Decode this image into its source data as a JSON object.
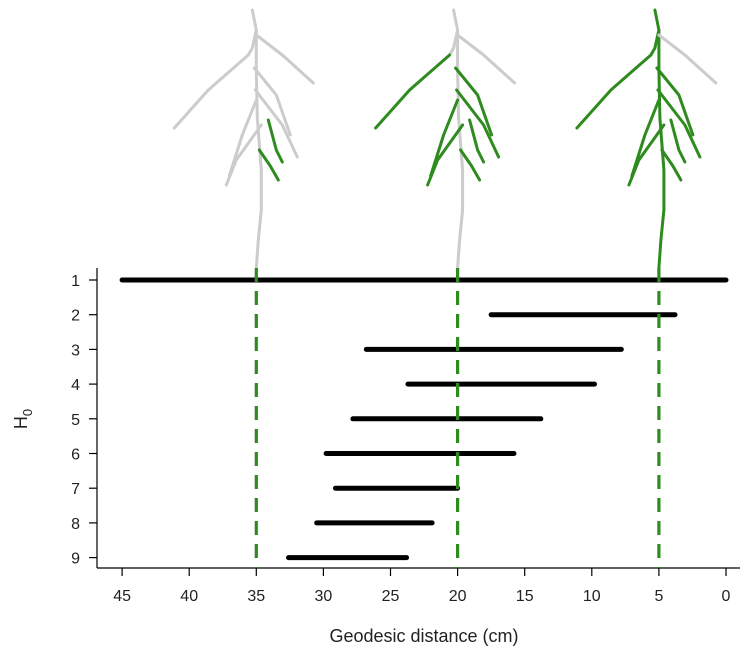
{
  "chart_data": {
    "type": "barcode",
    "xlabel": "Geodesic distance (cm)",
    "ylabel": "H",
    "ylabel_subscript": "0",
    "x_reversed": true,
    "xlim": [
      46,
      -1
    ],
    "xticks": [
      45,
      40,
      35,
      30,
      25,
      20,
      15,
      10,
      5,
      0
    ],
    "yticks": [
      1,
      2,
      3,
      4,
      5,
      6,
      7,
      8,
      9
    ],
    "bars": [
      {
        "index": 1,
        "birth": 45,
        "death": 0
      },
      {
        "index": 2,
        "birth": 17.5,
        "death": 3.8
      },
      {
        "index": 3,
        "birth": 26.8,
        "death": 7.8
      },
      {
        "index": 4,
        "birth": 23.7,
        "death": 9.8
      },
      {
        "index": 5,
        "birth": 27.8,
        "death": 13.8
      },
      {
        "index": 6,
        "birth": 29.8,
        "death": 15.8
      },
      {
        "index": 7,
        "birth": 29.1,
        "death": 20.0
      },
      {
        "index": 8,
        "birth": 30.5,
        "death": 21.9
      },
      {
        "index": 9,
        "birth": 32.6,
        "death": 23.8
      }
    ],
    "thresholds": [
      35,
      20,
      5
    ],
    "colors": {
      "active": "#2e8b1e",
      "inactive": "#cccccc",
      "bar": "#000000"
    }
  }
}
